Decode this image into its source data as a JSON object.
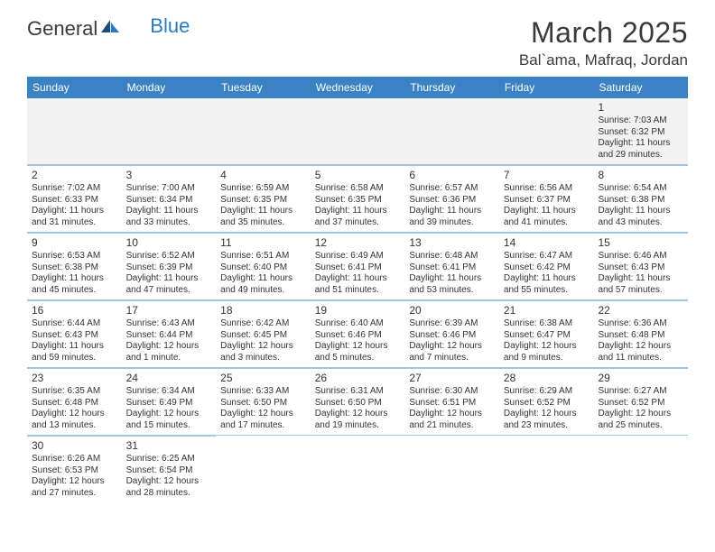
{
  "logo": {
    "text_main": "General",
    "text_accent": "Blue",
    "accent_color": "#2b7bbf"
  },
  "title": "March 2025",
  "location": "Bal`ama, Mafraq, Jordan",
  "colors": {
    "header_bg": "#3b82c4",
    "header_text": "#ffffff",
    "cell_border": "#9ec5e4",
    "gray_bg": "#f2f2f2",
    "text": "#333333"
  },
  "day_names": [
    "Sunday",
    "Monday",
    "Tuesday",
    "Wednesday",
    "Thursday",
    "Friday",
    "Saturday"
  ],
  "weeks": [
    [
      {
        "empty": true
      },
      {
        "empty": true
      },
      {
        "empty": true
      },
      {
        "empty": true
      },
      {
        "empty": true
      },
      {
        "empty": true
      },
      {
        "day": "1",
        "sunrise": "Sunrise: 7:03 AM",
        "sunset": "Sunset: 6:32 PM",
        "daylight": "Daylight: 11 hours and 29 minutes.",
        "gray": true
      }
    ],
    [
      {
        "day": "2",
        "sunrise": "Sunrise: 7:02 AM",
        "sunset": "Sunset: 6:33 PM",
        "daylight": "Daylight: 11 hours and 31 minutes."
      },
      {
        "day": "3",
        "sunrise": "Sunrise: 7:00 AM",
        "sunset": "Sunset: 6:34 PM",
        "daylight": "Daylight: 11 hours and 33 minutes."
      },
      {
        "day": "4",
        "sunrise": "Sunrise: 6:59 AM",
        "sunset": "Sunset: 6:35 PM",
        "daylight": "Daylight: 11 hours and 35 minutes."
      },
      {
        "day": "5",
        "sunrise": "Sunrise: 6:58 AM",
        "sunset": "Sunset: 6:35 PM",
        "daylight": "Daylight: 11 hours and 37 minutes."
      },
      {
        "day": "6",
        "sunrise": "Sunrise: 6:57 AM",
        "sunset": "Sunset: 6:36 PM",
        "daylight": "Daylight: 11 hours and 39 minutes."
      },
      {
        "day": "7",
        "sunrise": "Sunrise: 6:56 AM",
        "sunset": "Sunset: 6:37 PM",
        "daylight": "Daylight: 11 hours and 41 minutes."
      },
      {
        "day": "8",
        "sunrise": "Sunrise: 6:54 AM",
        "sunset": "Sunset: 6:38 PM",
        "daylight": "Daylight: 11 hours and 43 minutes."
      }
    ],
    [
      {
        "day": "9",
        "sunrise": "Sunrise: 6:53 AM",
        "sunset": "Sunset: 6:38 PM",
        "daylight": "Daylight: 11 hours and 45 minutes."
      },
      {
        "day": "10",
        "sunrise": "Sunrise: 6:52 AM",
        "sunset": "Sunset: 6:39 PM",
        "daylight": "Daylight: 11 hours and 47 minutes."
      },
      {
        "day": "11",
        "sunrise": "Sunrise: 6:51 AM",
        "sunset": "Sunset: 6:40 PM",
        "daylight": "Daylight: 11 hours and 49 minutes."
      },
      {
        "day": "12",
        "sunrise": "Sunrise: 6:49 AM",
        "sunset": "Sunset: 6:41 PM",
        "daylight": "Daylight: 11 hours and 51 minutes."
      },
      {
        "day": "13",
        "sunrise": "Sunrise: 6:48 AM",
        "sunset": "Sunset: 6:41 PM",
        "daylight": "Daylight: 11 hours and 53 minutes."
      },
      {
        "day": "14",
        "sunrise": "Sunrise: 6:47 AM",
        "sunset": "Sunset: 6:42 PM",
        "daylight": "Daylight: 11 hours and 55 minutes."
      },
      {
        "day": "15",
        "sunrise": "Sunrise: 6:46 AM",
        "sunset": "Sunset: 6:43 PM",
        "daylight": "Daylight: 11 hours and 57 minutes."
      }
    ],
    [
      {
        "day": "16",
        "sunrise": "Sunrise: 6:44 AM",
        "sunset": "Sunset: 6:43 PM",
        "daylight": "Daylight: 11 hours and 59 minutes."
      },
      {
        "day": "17",
        "sunrise": "Sunrise: 6:43 AM",
        "sunset": "Sunset: 6:44 PM",
        "daylight": "Daylight: 12 hours and 1 minute."
      },
      {
        "day": "18",
        "sunrise": "Sunrise: 6:42 AM",
        "sunset": "Sunset: 6:45 PM",
        "daylight": "Daylight: 12 hours and 3 minutes."
      },
      {
        "day": "19",
        "sunrise": "Sunrise: 6:40 AM",
        "sunset": "Sunset: 6:46 PM",
        "daylight": "Daylight: 12 hours and 5 minutes."
      },
      {
        "day": "20",
        "sunrise": "Sunrise: 6:39 AM",
        "sunset": "Sunset: 6:46 PM",
        "daylight": "Daylight: 12 hours and 7 minutes."
      },
      {
        "day": "21",
        "sunrise": "Sunrise: 6:38 AM",
        "sunset": "Sunset: 6:47 PM",
        "daylight": "Daylight: 12 hours and 9 minutes."
      },
      {
        "day": "22",
        "sunrise": "Sunrise: 6:36 AM",
        "sunset": "Sunset: 6:48 PM",
        "daylight": "Daylight: 12 hours and 11 minutes."
      }
    ],
    [
      {
        "day": "23",
        "sunrise": "Sunrise: 6:35 AM",
        "sunset": "Sunset: 6:48 PM",
        "daylight": "Daylight: 12 hours and 13 minutes."
      },
      {
        "day": "24",
        "sunrise": "Sunrise: 6:34 AM",
        "sunset": "Sunset: 6:49 PM",
        "daylight": "Daylight: 12 hours and 15 minutes."
      },
      {
        "day": "25",
        "sunrise": "Sunrise: 6:33 AM",
        "sunset": "Sunset: 6:50 PM",
        "daylight": "Daylight: 12 hours and 17 minutes."
      },
      {
        "day": "26",
        "sunrise": "Sunrise: 6:31 AM",
        "sunset": "Sunset: 6:50 PM",
        "daylight": "Daylight: 12 hours and 19 minutes."
      },
      {
        "day": "27",
        "sunrise": "Sunrise: 6:30 AM",
        "sunset": "Sunset: 6:51 PM",
        "daylight": "Daylight: 12 hours and 21 minutes."
      },
      {
        "day": "28",
        "sunrise": "Sunrise: 6:29 AM",
        "sunset": "Sunset: 6:52 PM",
        "daylight": "Daylight: 12 hours and 23 minutes."
      },
      {
        "day": "29",
        "sunrise": "Sunrise: 6:27 AM",
        "sunset": "Sunset: 6:52 PM",
        "daylight": "Daylight: 12 hours and 25 minutes."
      }
    ],
    [
      {
        "day": "30",
        "sunrise": "Sunrise: 6:26 AM",
        "sunset": "Sunset: 6:53 PM",
        "daylight": "Daylight: 12 hours and 27 minutes."
      },
      {
        "day": "31",
        "sunrise": "Sunrise: 6:25 AM",
        "sunset": "Sunset: 6:54 PM",
        "daylight": "Daylight: 12 hours and 28 minutes."
      },
      {
        "empty": true,
        "whiteempty": true
      },
      {
        "empty": true,
        "whiteempty": true
      },
      {
        "empty": true,
        "whiteempty": true
      },
      {
        "empty": true,
        "whiteempty": true
      },
      {
        "empty": true,
        "whiteempty": true
      }
    ]
  ]
}
